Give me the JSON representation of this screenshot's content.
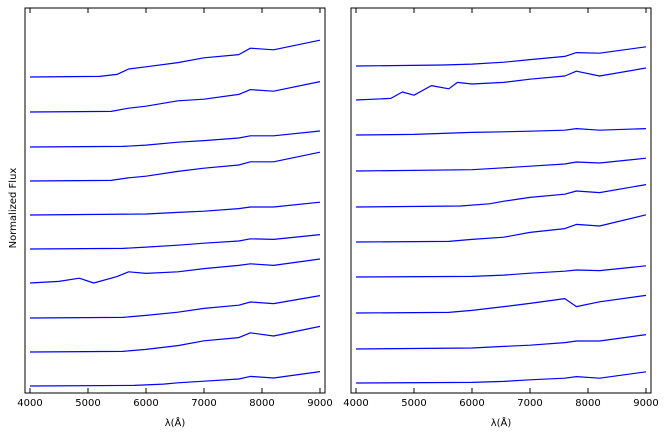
{
  "chart_data": [
    {
      "type": "line",
      "panel": "left",
      "xlabel": "λ(Å)",
      "ylabel": "Normalized Flux",
      "xlim": [
        4000,
        9000
      ],
      "xticks": [
        "4000",
        "5000",
        "6000",
        "7000",
        "8000",
        "9000"
      ],
      "y_ticks_shown": false,
      "grid": false,
      "line_color": "#0000ff",
      "series": [
        {
          "values": [
            [
              4000,
              1.0
            ],
            [
              5200,
              1.02
            ],
            [
              5500,
              1.08
            ],
            [
              5700,
              1.25
            ],
            [
              6000,
              1.32
            ],
            [
              6550,
              1.45
            ],
            [
              7000,
              1.6
            ],
            [
              7600,
              1.7
            ],
            [
              7800,
              1.9
            ],
            [
              8200,
              1.85
            ],
            [
              9000,
              2.15
            ]
          ]
        },
        {
          "values": [
            [
              4000,
              1.0
            ],
            [
              5400,
              1.02
            ],
            [
              5700,
              1.12
            ],
            [
              6000,
              1.18
            ],
            [
              6550,
              1.35
            ],
            [
              7000,
              1.4
            ],
            [
              7600,
              1.55
            ],
            [
              7800,
              1.7
            ],
            [
              8200,
              1.65
            ],
            [
              9000,
              1.95
            ]
          ]
        },
        {
          "values": [
            [
              4000,
              1.0
            ],
            [
              5600,
              1.02
            ],
            [
              6000,
              1.06
            ],
            [
              6550,
              1.15
            ],
            [
              7000,
              1.2
            ],
            [
              7600,
              1.28
            ],
            [
              7800,
              1.35
            ],
            [
              8200,
              1.35
            ],
            [
              9000,
              1.5
            ]
          ]
        },
        {
          "values": [
            [
              4000,
              1.0
            ],
            [
              5400,
              1.02
            ],
            [
              5700,
              1.1
            ],
            [
              6000,
              1.15
            ],
            [
              6550,
              1.3
            ],
            [
              7000,
              1.4
            ],
            [
              7600,
              1.5
            ],
            [
              7800,
              1.6
            ],
            [
              8200,
              1.6
            ],
            [
              9000,
              1.9
            ]
          ]
        },
        {
          "values": [
            [
              4000,
              1.0
            ],
            [
              6000,
              1.03
            ],
            [
              6550,
              1.08
            ],
            [
              7000,
              1.12
            ],
            [
              7600,
              1.2
            ],
            [
              7800,
              1.25
            ],
            [
              8200,
              1.25
            ],
            [
              9000,
              1.4
            ]
          ]
        },
        {
          "values": [
            [
              4000,
              1.0
            ],
            [
              5600,
              1.02
            ],
            [
              6000,
              1.06
            ],
            [
              6550,
              1.12
            ],
            [
              7000,
              1.18
            ],
            [
              7600,
              1.25
            ],
            [
              7800,
              1.32
            ],
            [
              8200,
              1.3
            ],
            [
              9000,
              1.45
            ]
          ]
        },
        {
          "values": [
            [
              4000,
              1.0
            ],
            [
              4500,
              1.05
            ],
            [
              4850,
              1.15
            ],
            [
              5100,
              1.0
            ],
            [
              5500,
              1.2
            ],
            [
              5700,
              1.35
            ],
            [
              6000,
              1.3
            ],
            [
              6550,
              1.35
            ],
            [
              7000,
              1.45
            ],
            [
              7600,
              1.55
            ],
            [
              7800,
              1.6
            ],
            [
              8200,
              1.55
            ],
            [
              9000,
              1.75
            ]
          ]
        },
        {
          "values": [
            [
              4000,
              1.0
            ],
            [
              5600,
              1.02
            ],
            [
              6000,
              1.08
            ],
            [
              6550,
              1.18
            ],
            [
              7000,
              1.3
            ],
            [
              7600,
              1.4
            ],
            [
              7800,
              1.5
            ],
            [
              8200,
              1.45
            ],
            [
              9000,
              1.7
            ]
          ]
        },
        {
          "values": [
            [
              4000,
              1.0
            ],
            [
              5600,
              1.02
            ],
            [
              6000,
              1.08
            ],
            [
              6550,
              1.2
            ],
            [
              7000,
              1.35
            ],
            [
              7600,
              1.45
            ],
            [
              7800,
              1.6
            ],
            [
              8200,
              1.5
            ],
            [
              9000,
              1.8
            ]
          ]
        },
        {
          "values": [
            [
              4000,
              1.0
            ],
            [
              5800,
              1.02
            ],
            [
              6300,
              1.06
            ],
            [
              6550,
              1.1
            ],
            [
              7000,
              1.15
            ],
            [
              7600,
              1.22
            ],
            [
              7800,
              1.3
            ],
            [
              8200,
              1.25
            ],
            [
              9000,
              1.45
            ]
          ]
        }
      ]
    },
    {
      "type": "line",
      "panel": "right",
      "xlabel": "λ(Å)",
      "xlim": [
        4000,
        9000
      ],
      "xticks": [
        "4000",
        "5000",
        "6000",
        "7000",
        "8000",
        "9000"
      ],
      "y_ticks_shown": false,
      "grid": false,
      "line_color": "#0000ff",
      "series": [
        {
          "values": [
            [
              4000,
              1.0
            ],
            [
              5500,
              1.03
            ],
            [
              6000,
              1.06
            ],
            [
              6550,
              1.12
            ],
            [
              7000,
              1.2
            ],
            [
              7600,
              1.3
            ],
            [
              7800,
              1.42
            ],
            [
              8200,
              1.4
            ],
            [
              9000,
              1.6
            ]
          ]
        },
        {
          "values": [
            [
              4000,
              1.0
            ],
            [
              4600,
              1.05
            ],
            [
              4800,
              1.25
            ],
            [
              5000,
              1.15
            ],
            [
              5300,
              1.45
            ],
            [
              5600,
              1.35
            ],
            [
              5750,
              1.55
            ],
            [
              6000,
              1.5
            ],
            [
              6550,
              1.55
            ],
            [
              7000,
              1.65
            ],
            [
              7600,
              1.75
            ],
            [
              7800,
              1.9
            ],
            [
              8200,
              1.75
            ],
            [
              9000,
              2.0
            ]
          ]
        },
        {
          "values": [
            [
              4000,
              1.0
            ],
            [
              5000,
              1.02
            ],
            [
              6000,
              1.08
            ],
            [
              6550,
              1.1
            ],
            [
              7000,
              1.12
            ],
            [
              7600,
              1.15
            ],
            [
              7800,
              1.2
            ],
            [
              8200,
              1.15
            ],
            [
              9000,
              1.2
            ]
          ]
        },
        {
          "values": [
            [
              4000,
              1.0
            ],
            [
              6000,
              1.04
            ],
            [
              6550,
              1.1
            ],
            [
              7000,
              1.15
            ],
            [
              7600,
              1.22
            ],
            [
              7800,
              1.28
            ],
            [
              8200,
              1.25
            ],
            [
              9000,
              1.4
            ]
          ]
        },
        {
          "values": [
            [
              4000,
              1.0
            ],
            [
              5800,
              1.03
            ],
            [
              6300,
              1.1
            ],
            [
              6550,
              1.18
            ],
            [
              7000,
              1.3
            ],
            [
              7600,
              1.4
            ],
            [
              7800,
              1.5
            ],
            [
              8200,
              1.45
            ],
            [
              9000,
              1.7
            ]
          ]
        },
        {
          "values": [
            [
              4000,
              1.0
            ],
            [
              5600,
              1.02
            ],
            [
              6000,
              1.08
            ],
            [
              6550,
              1.15
            ],
            [
              7000,
              1.3
            ],
            [
              7600,
              1.42
            ],
            [
              7800,
              1.55
            ],
            [
              8200,
              1.5
            ],
            [
              9000,
              1.85
            ]
          ]
        },
        {
          "values": [
            [
              4000,
              1.0
            ],
            [
              6000,
              1.02
            ],
            [
              6550,
              1.06
            ],
            [
              7000,
              1.12
            ],
            [
              7600,
              1.18
            ],
            [
              7800,
              1.22
            ],
            [
              8200,
              1.2
            ],
            [
              9000,
              1.35
            ]
          ]
        },
        {
          "values": [
            [
              4000,
              1.0
            ],
            [
              5600,
              1.02
            ],
            [
              6000,
              1.08
            ],
            [
              6550,
              1.2
            ],
            [
              7000,
              1.3
            ],
            [
              7600,
              1.45
            ],
            [
              7800,
              1.2
            ],
            [
              8200,
              1.35
            ],
            [
              9000,
              1.55
            ]
          ]
        },
        {
          "values": [
            [
              4000,
              1.0
            ],
            [
              6000,
              1.03
            ],
            [
              6550,
              1.08
            ],
            [
              7000,
              1.12
            ],
            [
              7600,
              1.2
            ],
            [
              7800,
              1.25
            ],
            [
              8200,
              1.25
            ],
            [
              9000,
              1.45
            ]
          ]
        },
        {
          "values": [
            [
              4000,
              1.0
            ],
            [
              6000,
              1.02
            ],
            [
              6550,
              1.05
            ],
            [
              7000,
              1.1
            ],
            [
              7600,
              1.15
            ],
            [
              7800,
              1.2
            ],
            [
              8200,
              1.15
            ],
            [
              9000,
              1.35
            ]
          ]
        }
      ]
    }
  ]
}
